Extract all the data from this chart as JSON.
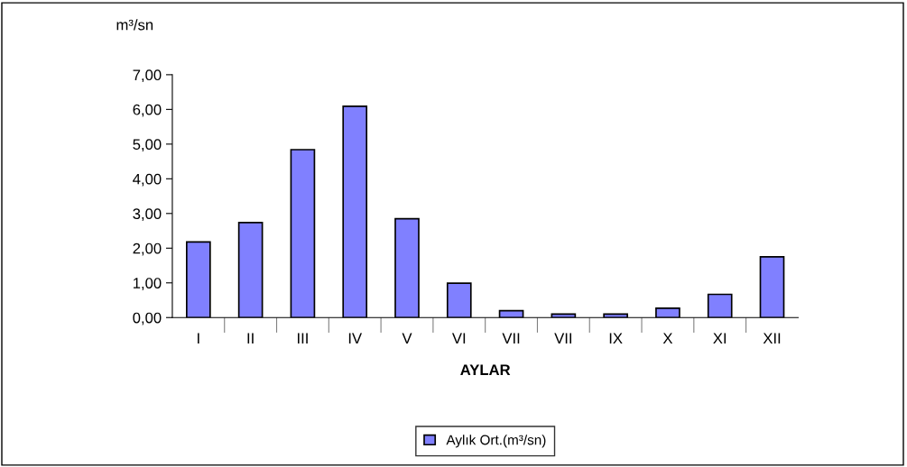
{
  "chart_data": {
    "type": "bar",
    "xlabel": "AYLAR",
    "ylabel": "m³/sn",
    "categories": [
      "I",
      "II",
      "III",
      "IV",
      "V",
      "VI",
      "VII",
      "VII",
      "IX",
      "X",
      "XI",
      "XII"
    ],
    "series": [
      {
        "name": "Aylık Ort.(m³/sn)",
        "color": "#8080ff",
        "values": [
          2.18,
          2.74,
          4.84,
          6.09,
          2.85,
          0.99,
          0.2,
          0.1,
          0.1,
          0.27,
          0.67,
          1.75
        ]
      }
    ],
    "ylim": [
      0,
      7
    ],
    "yticks": [
      {
        "value": 0,
        "label": "0,00"
      },
      {
        "value": 1,
        "label": "1,00"
      },
      {
        "value": 2,
        "label": "2,00"
      },
      {
        "value": 3,
        "label": "3,00"
      },
      {
        "value": 4,
        "label": "4,00"
      },
      {
        "value": 5,
        "label": "5,00"
      },
      {
        "value": 6,
        "label": "6,00"
      },
      {
        "value": 7,
        "label": "7,00"
      }
    ],
    "grid": false,
    "legend": "bottom"
  }
}
